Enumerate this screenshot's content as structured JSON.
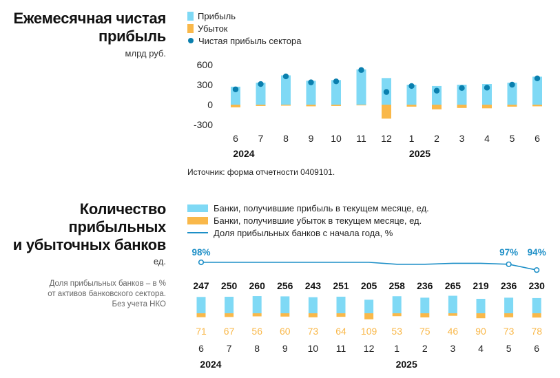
{
  "colors": {
    "profit": "#7fd9f5",
    "loss": "#f9b84a",
    "net": "#0a7fae",
    "share_line": "#1d8fc7",
    "axis_text": "#222222"
  },
  "chart1": {
    "title_line1": "Ежемесячная чистая",
    "title_line2": "прибыль",
    "unit": "млрд руб.",
    "legend": {
      "profit": "Прибыль",
      "loss": "Убыток",
      "net": "Чистая прибыль сектора"
    },
    "source": "Источник: форма отчетности 0409101."
  },
  "chart2": {
    "title_line1": "Количество",
    "title_line2": "прибыльных",
    "title_line3": "и убыточных банков",
    "unit": "ед.",
    "note_line1": "Доля прибыльных банков – в %",
    "note_line2": "от активов банковского сектора.",
    "note_line3": "Без учета НКО",
    "legend": {
      "profit": "Банки, получившие прибыль в текущем месяце, ед.",
      "loss": "Банки, получившие убыток в текущем месяце, ед.",
      "share": "Доля прибыльных банков с начала года, %"
    }
  },
  "chart_data": [
    {
      "type": "bar",
      "title": "Ежемесячная чистая прибыль",
      "ylabel": "млрд руб.",
      "categories": [
        "6",
        "7",
        "8",
        "9",
        "10",
        "11",
        "12",
        "1",
        "2",
        "3",
        "4",
        "5",
        "6"
      ],
      "year_labels": [
        {
          "label": "2024",
          "at_index": 0
        },
        {
          "label": "2025",
          "at_index": 7
        }
      ],
      "yticks": [
        600,
        300,
        0,
        -300
      ],
      "ylim": [
        -300,
        600
      ],
      "series": [
        {
          "name": "Прибыль",
          "kind": "bar",
          "values": [
            270,
            330,
            440,
            360,
            370,
            530,
            400,
            300,
            280,
            300,
            310,
            330,
            420
          ]
        },
        {
          "name": "Убыток",
          "kind": "bar",
          "values": [
            -40,
            -20,
            -15,
            -25,
            -20,
            -10,
            -210,
            -30,
            -70,
            -50,
            -55,
            -30,
            -25
          ]
        },
        {
          "name": "Чистая прибыль сектора",
          "kind": "dot",
          "values": [
            230,
            310,
            425,
            335,
            350,
            520,
            190,
            280,
            210,
            250,
            255,
            300,
            395
          ]
        }
      ]
    },
    {
      "type": "bar",
      "title": "Количество прибыльных и убыточных банков",
      "ylabel": "ед.",
      "categories": [
        "6",
        "7",
        "8",
        "9",
        "10",
        "11",
        "12",
        "1",
        "2",
        "3",
        "4",
        "5",
        "6"
      ],
      "year_labels": [
        {
          "label": "2024",
          "at_index": 0
        },
        {
          "label": "2025",
          "at_index": 7
        }
      ],
      "series": [
        {
          "name": "Банки, получившие прибыль в текущем месяце, ед.",
          "kind": "bar",
          "values": [
            247,
            250,
            260,
            256,
            243,
            251,
            205,
            258,
            236,
            265,
            219,
            236,
            230
          ]
        },
        {
          "name": "Банки, получившие убыток в текущем месяце, ед.",
          "kind": "bar",
          "values": [
            71,
            67,
            56,
            60,
            73,
            64,
            109,
            53,
            75,
            46,
            90,
            73,
            78
          ]
        },
        {
          "name": "Доля прибыльных банков с начала года, %",
          "kind": "line",
          "values": [
            98,
            98,
            98,
            98,
            98,
            98,
            98,
            97,
            97,
            97.5,
            97.5,
            97,
            94
          ]
        }
      ],
      "line_labels": [
        {
          "index": 0,
          "label": "98%"
        },
        {
          "index": 11,
          "label": "97%"
        },
        {
          "index": 12,
          "label": "94%"
        }
      ]
    }
  ]
}
